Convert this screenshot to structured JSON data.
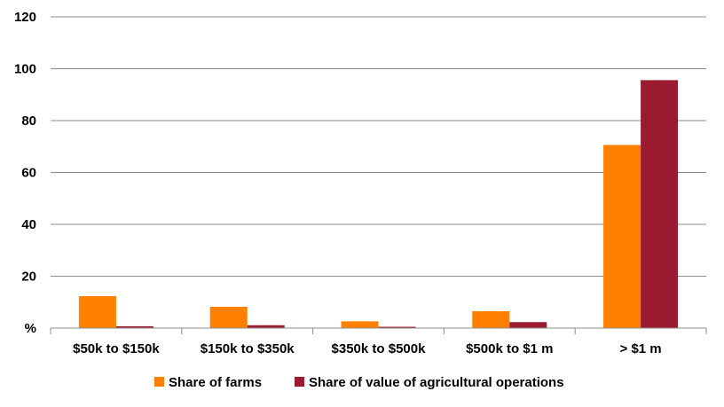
{
  "chart_data": {
    "type": "bar",
    "categories": [
      "$50k to $150k",
      "$150k to $350k",
      "$350k to $500k",
      "$500k to $1 m",
      "> $1 m"
    ],
    "series": [
      {
        "name": "Share of farms",
        "color": "#ff7f00",
        "values": [
          12.3,
          8.2,
          2.6,
          6.5,
          70.6
        ]
      },
      {
        "name": "Share of value of agricultural operations",
        "color": "#9b1b30",
        "values": [
          0.7,
          1.1,
          0.5,
          2.3,
          95.6
        ]
      }
    ],
    "y_tick_labels": [
      "%",
      "20",
      "40",
      "60",
      "80",
      "100",
      "120"
    ],
    "ylim": [
      0,
      120
    ],
    "grid": true,
    "legend_position": "bottom"
  }
}
